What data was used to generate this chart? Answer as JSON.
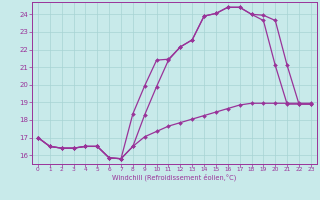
{
  "xlabel": "Windchill (Refroidissement éolien,°C)",
  "xlim": [
    -0.5,
    23.5
  ],
  "ylim": [
    15.5,
    24.7
  ],
  "xticks": [
    0,
    1,
    2,
    3,
    4,
    5,
    6,
    7,
    8,
    9,
    10,
    11,
    12,
    13,
    14,
    15,
    16,
    17,
    18,
    19,
    20,
    21,
    22,
    23
  ],
  "yticks": [
    16,
    17,
    18,
    19,
    20,
    21,
    22,
    23,
    24
  ],
  "bg_color": "#c8eaea",
  "grid_color": "#a8d4d4",
  "line_color": "#993399",
  "curve1_x": [
    0,
    1,
    2,
    3,
    4,
    5,
    6,
    7,
    8,
    9,
    10,
    11,
    12,
    13,
    14,
    15,
    16,
    17,
    18,
    19,
    20,
    21,
    22,
    23
  ],
  "curve1_y": [
    17.0,
    16.5,
    16.4,
    16.4,
    16.5,
    16.5,
    15.85,
    15.8,
    16.5,
    18.3,
    19.9,
    21.4,
    22.15,
    22.55,
    23.9,
    24.05,
    24.4,
    24.4,
    24.0,
    23.95,
    23.65,
    21.1,
    18.9,
    18.9
  ],
  "curve2_x": [
    0,
    1,
    2,
    3,
    4,
    5,
    6,
    7,
    8,
    9,
    10,
    11,
    12,
    13,
    14,
    15,
    16,
    17,
    18,
    19,
    20,
    21,
    22,
    23
  ],
  "curve2_y": [
    17.0,
    16.5,
    16.4,
    16.4,
    16.5,
    16.5,
    15.85,
    15.8,
    16.5,
    17.05,
    17.35,
    17.65,
    17.85,
    18.05,
    18.25,
    18.45,
    18.65,
    18.85,
    18.95,
    18.95,
    18.95,
    18.95,
    18.95,
    18.95
  ],
  "curve3_x": [
    0,
    1,
    2,
    3,
    4,
    5,
    6,
    7,
    8,
    9,
    10,
    11,
    12,
    13,
    14,
    15,
    16,
    17,
    18,
    19,
    20,
    21,
    22,
    23
  ],
  "curve3_y": [
    17.0,
    16.5,
    16.4,
    16.4,
    16.5,
    16.5,
    15.85,
    15.8,
    18.35,
    19.95,
    21.4,
    21.45,
    22.15,
    22.55,
    23.9,
    24.05,
    24.4,
    24.4,
    24.0,
    23.65,
    21.1,
    18.9,
    18.9,
    18.9
  ]
}
